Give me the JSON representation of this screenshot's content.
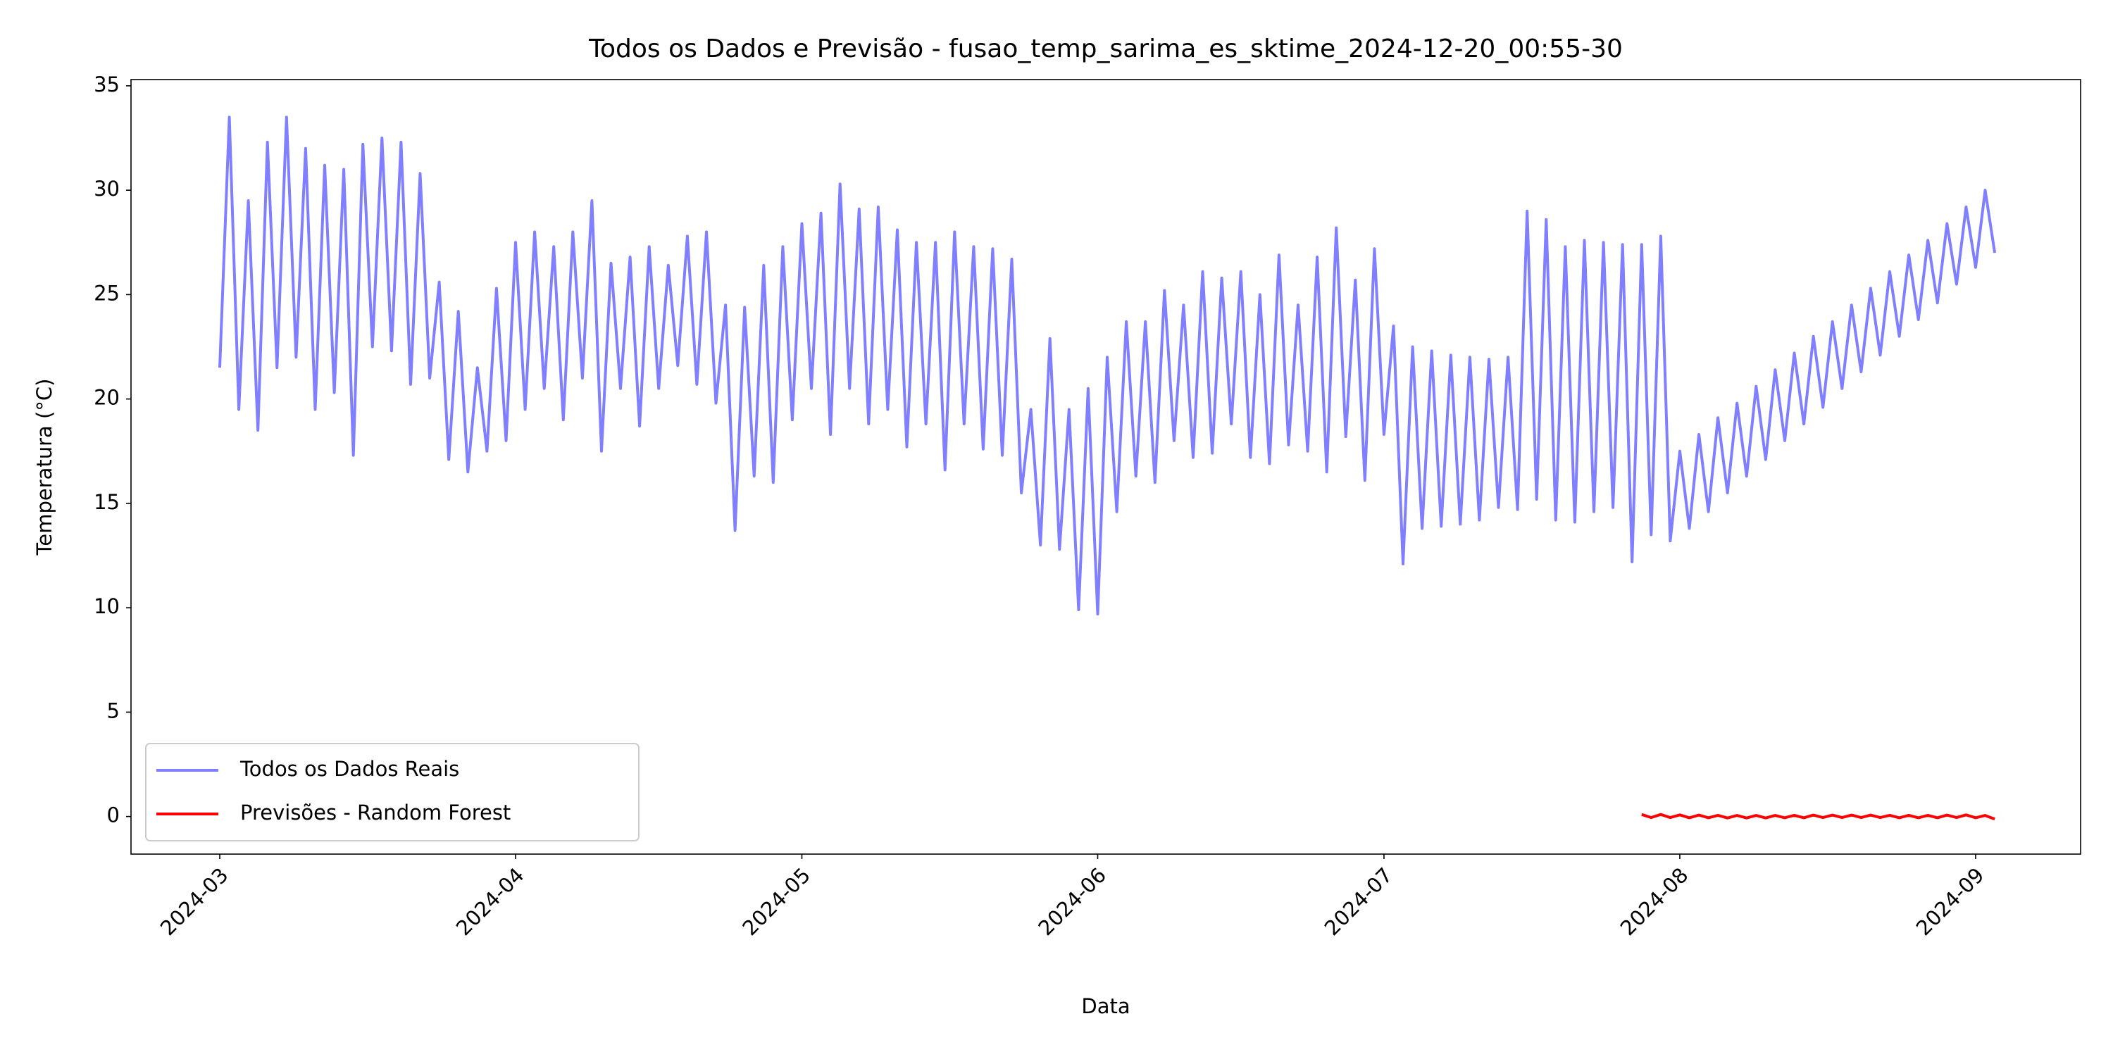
{
  "chart_data": {
    "type": "line",
    "title": "Todos os Dados e Previsão - fusao_temp_sarima_es_sktime_2024-12-20_00:55-30",
    "x_label": "Data",
    "y_label": "Temperatura (°C)",
    "xlim": [
      -9.3,
      195
    ],
    "ylim": [
      -1.8,
      35.3
    ],
    "xticks": [
      {
        "value": 0,
        "label": "2024-03"
      },
      {
        "value": 31,
        "label": "2024-04"
      },
      {
        "value": 61,
        "label": "2024-05"
      },
      {
        "value": 92,
        "label": "2024-06"
      },
      {
        "value": 122,
        "label": "2024-07"
      },
      {
        "value": 153,
        "label": "2024-08"
      },
      {
        "value": 184,
        "label": "2024-09"
      }
    ],
    "yticks": [
      0,
      5,
      10,
      15,
      20,
      25,
      30,
      35
    ],
    "legend": "lower left",
    "series": [
      {
        "name": "Todos os Dados Reais",
        "color": "#7f7fff",
        "x": [
          0,
          1,
          2,
          3,
          4,
          5,
          6,
          7,
          8,
          9,
          10,
          11,
          12,
          13,
          14,
          15,
          16,
          17,
          18,
          19,
          20,
          21,
          22,
          23,
          24,
          25,
          26,
          27,
          28,
          29,
          30,
          31,
          32,
          33,
          34,
          35,
          36,
          37,
          38,
          39,
          40,
          41,
          42,
          43,
          44,
          45,
          46,
          47,
          48,
          49,
          50,
          51,
          52,
          53,
          54,
          55,
          56,
          57,
          58,
          59,
          60,
          61,
          62,
          63,
          64,
          65,
          66,
          67,
          68,
          69,
          70,
          71,
          72,
          73,
          74,
          75,
          76,
          77,
          78,
          79,
          80,
          81,
          82,
          83,
          84,
          85,
          86,
          87,
          88,
          89,
          90,
          91,
          92,
          93,
          94,
          95,
          96,
          97,
          98,
          99,
          100,
          101,
          102,
          103,
          104,
          105,
          106,
          107,
          108,
          109,
          110,
          111,
          112,
          113,
          114,
          115,
          116,
          117,
          118,
          119,
          120,
          121,
          122,
          123,
          124,
          125,
          126,
          127,
          128,
          129,
          130,
          131,
          132,
          133,
          134,
          135,
          136,
          137,
          138,
          139,
          140,
          141,
          142,
          143,
          144,
          145,
          146,
          147,
          148,
          149,
          150,
          151,
          152,
          153,
          154,
          155,
          156,
          157,
          158,
          159,
          160,
          161,
          162,
          163,
          164,
          165,
          166,
          167,
          168,
          169,
          170,
          171,
          172,
          173,
          174,
          175,
          176,
          177,
          178,
          179,
          180,
          181,
          182,
          183,
          184,
          185,
          186
        ],
        "values": [
          21.5,
          33.5,
          19.5,
          29.5,
          18.5,
          32.3,
          21.5,
          33.5,
          22,
          32,
          19.5,
          31.2,
          20.3,
          31,
          17.3,
          32.2,
          22.5,
          32.5,
          22.3,
          32.3,
          20.7,
          30.8,
          21,
          25.6,
          17.1,
          24.2,
          16.5,
          21.5,
          17.5,
          25.3,
          18,
          27.5,
          19.5,
          28,
          20.5,
          27.3,
          19,
          28,
          21,
          29.5,
          17.5,
          26.5,
          20.5,
          26.8,
          18.7,
          27.3,
          20.5,
          26.4,
          21.6,
          27.8,
          20.7,
          28,
          19.8,
          24.5,
          13.7,
          24.4,
          16.3,
          26.4,
          16,
          27.3,
          19,
          28.4,
          20.5,
          28.9,
          18.3,
          30.3,
          20.5,
          29.1,
          18.8,
          29.2,
          19.5,
          28.1,
          17.7,
          27.5,
          18.8,
          27.5,
          16.6,
          28,
          18.8,
          27.3,
          17.6,
          27.2,
          17.3,
          26.7,
          15.5,
          19.5,
          13,
          22.9,
          12.8,
          19.5,
          9.9,
          20.5,
          9.7,
          22,
          14.6,
          23.7,
          16.3,
          23.7,
          16,
          25.2,
          18,
          24.5,
          17.2,
          26.1,
          17.4,
          25.8,
          18.8,
          26.1,
          17.2,
          25,
          16.9,
          26.9,
          17.8,
          24.5,
          17.5,
          26.8,
          16.5,
          28.2,
          18.2,
          25.7,
          16.1,
          27.2,
          18.3,
          23.5,
          12.1,
          22.5,
          13.8,
          22.3,
          13.9,
          22.1,
          14,
          22,
          14.2,
          21.9,
          14.8,
          22,
          14.7,
          29,
          15.2,
          28.6,
          14.2,
          27.3,
          14.1,
          27.6,
          14.6,
          27.5,
          14.8,
          27.4,
          12.2,
          27.4,
          13.5,
          27.8,
          13.2,
          17.5,
          13.8,
          18.3,
          14.6,
          19.1,
          15.5,
          19.8,
          16.3,
          20.6,
          17.1,
          21.4,
          18,
          22.2,
          18.8,
          23,
          19.6,
          23.7,
          20.5,
          24.5,
          21.3,
          25.3,
          22.1,
          26.1,
          23,
          26.9,
          23.8,
          27.6,
          24.6,
          28.4,
          25.5,
          29.2,
          26.3,
          30,
          27
        ]
      },
      {
        "name": "Previsões - Random Forest",
        "color": "#ff0000",
        "x": [
          149,
          150,
          151,
          152,
          153,
          154,
          155,
          156,
          157,
          158,
          159,
          160,
          161,
          162,
          163,
          164,
          165,
          166,
          167,
          168,
          169,
          170,
          171,
          172,
          173,
          174,
          175,
          176,
          177,
          178,
          179,
          180,
          181,
          182,
          183,
          184,
          185,
          186
        ],
        "values": [
          0.1,
          -0.05,
          0.1,
          -0.05,
          0.08,
          -0.06,
          0.07,
          -0.06,
          0.06,
          -0.07,
          0.05,
          -0.07,
          0.05,
          -0.07,
          0.05,
          -0.06,
          0.06,
          -0.06,
          0.07,
          -0.05,
          0.07,
          -0.05,
          0.07,
          -0.05,
          0.07,
          -0.05,
          0.06,
          -0.06,
          0.06,
          -0.06,
          0.06,
          -0.06,
          0.07,
          -0.05,
          0.08,
          -0.06,
          0.05,
          -0.12
        ]
      }
    ]
  }
}
